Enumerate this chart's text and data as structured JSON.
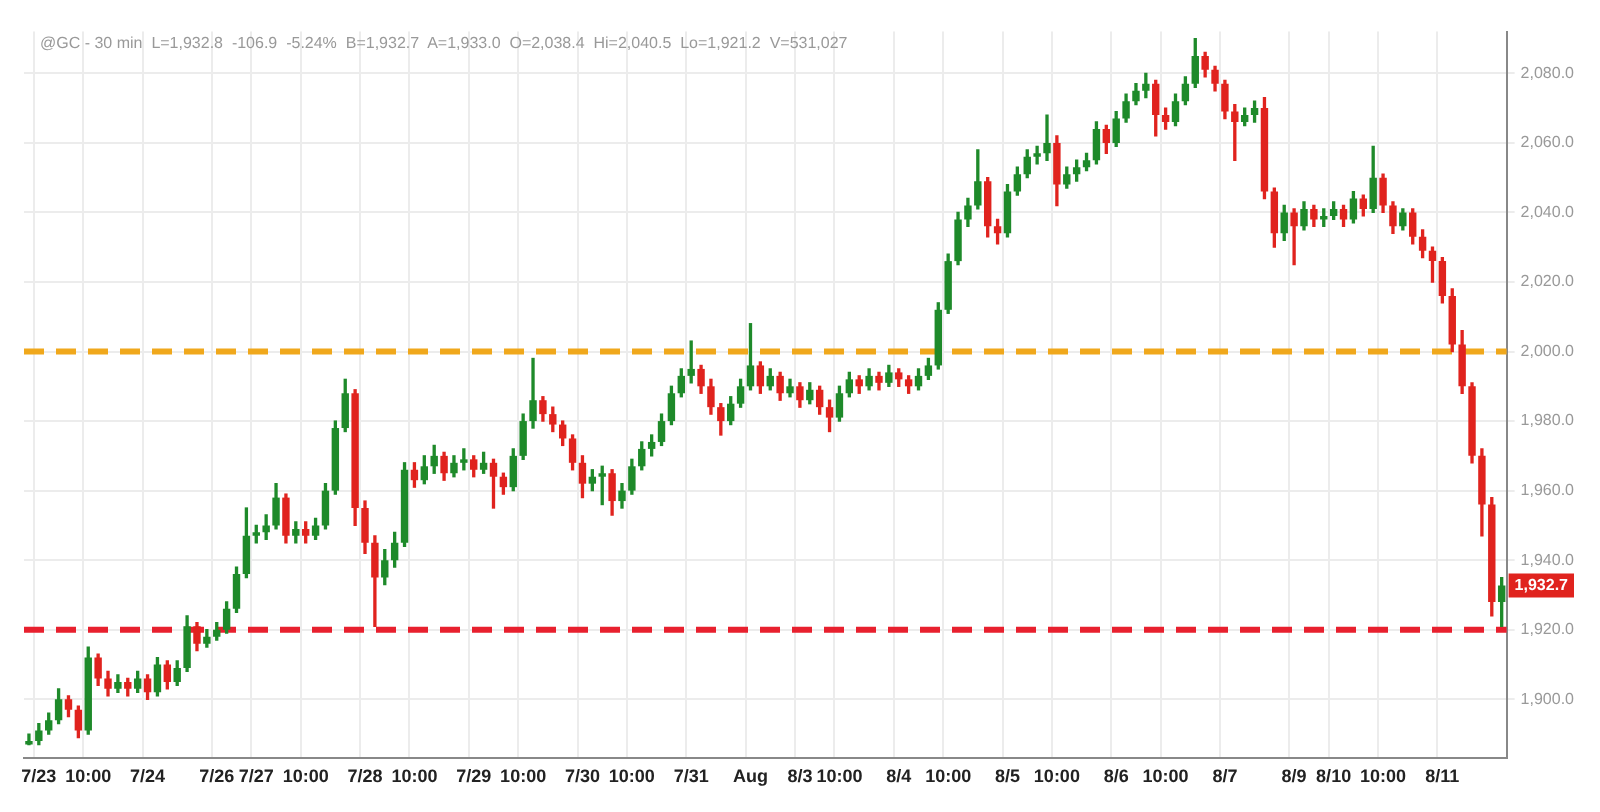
{
  "chart_data": {
    "type": "candlestick",
    "subtitle": "@GC - 30 min  L=1,932.8  -106.9  -5.24%  B=1,932.7  A=1,933.0  O=2,038.4  Hi=2,040.5  Lo=1,921.2  V=531,027",
    "categories": [
      null,
      "7/23",
      null,
      null,
      null,
      null,
      "10:00",
      null,
      null,
      null,
      null,
      null,
      "7/24",
      null,
      null,
      null,
      null,
      null,
      null,
      "7/26",
      null,
      null,
      null,
      "7/27",
      null,
      null,
      null,
      null,
      "10:00",
      null,
      null,
      null,
      null,
      null,
      "7/28",
      null,
      null,
      null,
      null,
      "10:00",
      null,
      null,
      null,
      null,
      null,
      "7/29",
      null,
      null,
      null,
      null,
      "10:00",
      null,
      null,
      null,
      null,
      null,
      "7/30",
      null,
      null,
      null,
      null,
      "10:00",
      null,
      null,
      null,
      null,
      null,
      "7/31",
      null,
      null,
      null,
      null,
      null,
      "Aug",
      null,
      null,
      null,
      null,
      "8/3",
      null,
      null,
      null,
      "10:00",
      null,
      null,
      null,
      null,
      null,
      "8/4",
      null,
      null,
      null,
      null,
      "10:00",
      null,
      null,
      null,
      null,
      null,
      "8/5",
      null,
      null,
      null,
      null,
      "10:00",
      null,
      null,
      null,
      null,
      null,
      "8/6",
      null,
      null,
      null,
      null,
      "10:00",
      null,
      null,
      null,
      null,
      null,
      "8/7",
      null,
      null,
      null,
      null,
      null,
      null,
      "8/9",
      null,
      null,
      null,
      "8/10",
      null,
      null,
      null,
      null,
      "10:00",
      null,
      null,
      null,
      null,
      null,
      "8/11",
      null,
      null,
      null,
      null,
      null,
      null
    ],
    "ohlc": [
      [
        1887,
        1890,
        1887,
        1888
      ],
      [
        1888,
        1893,
        1887,
        1891
      ],
      [
        1891,
        1896,
        1890,
        1894
      ],
      [
        1894,
        1903,
        1893,
        1900
      ],
      [
        1900,
        1901,
        1895,
        1897
      ],
      [
        1897,
        1898,
        1889,
        1891
      ],
      [
        1891,
        1915,
        1890,
        1912
      ],
      [
        1912,
        1913,
        1904,
        1906
      ],
      [
        1906,
        1908,
        1901,
        1903
      ],
      [
        1903,
        1907,
        1902,
        1905
      ],
      [
        1905,
        1906,
        1901,
        1903
      ],
      [
        1903,
        1908,
        1902,
        1906
      ],
      [
        1906,
        1907,
        1900,
        1902
      ],
      [
        1902,
        1912,
        1901,
        1910
      ],
      [
        1910,
        1911,
        1903,
        1905
      ],
      [
        1905,
        1911,
        1904,
        1909
      ],
      [
        1909,
        1924,
        1908,
        1921
      ],
      [
        1921,
        1922,
        1914,
        1916
      ],
      [
        1916,
        1920,
        1915,
        1918
      ],
      [
        1918,
        1922,
        1917,
        1920
      ],
      [
        1920,
        1928,
        1919,
        1926
      ],
      [
        1926,
        1938,
        1925,
        1936
      ],
      [
        1936,
        1955,
        1935,
        1947
      ],
      [
        1947,
        1950,
        1945,
        1948
      ],
      [
        1948,
        1953,
        1946,
        1950
      ],
      [
        1950,
        1962,
        1949,
        1958
      ],
      [
        1958,
        1959,
        1945,
        1947
      ],
      [
        1947,
        1951,
        1945,
        1949
      ],
      [
        1949,
        1951,
        1945,
        1947
      ],
      [
        1947,
        1952,
        1946,
        1950
      ],
      [
        1950,
        1962,
        1949,
        1960
      ],
      [
        1960,
        1980,
        1959,
        1978
      ],
      [
        1978,
        1992,
        1977,
        1988
      ],
      [
        1988,
        1989,
        1950,
        1955
      ],
      [
        1955,
        1957,
        1942,
        1945
      ],
      [
        1945,
        1947,
        1921,
        1935
      ],
      [
        1935,
        1943,
        1933,
        1940
      ],
      [
        1940,
        1948,
        1938,
        1945
      ],
      [
        1945,
        1968,
        1944,
        1966
      ],
      [
        1966,
        1968,
        1961,
        1963
      ],
      [
        1963,
        1970,
        1962,
        1967
      ],
      [
        1967,
        1973,
        1965,
        1970
      ],
      [
        1970,
        1971,
        1963,
        1965
      ],
      [
        1965,
        1970,
        1964,
        1968
      ],
      [
        1968,
        1972,
        1966,
        1969
      ],
      [
        1969,
        1970,
        1964,
        1966
      ],
      [
        1966,
        1971,
        1965,
        1968
      ],
      [
        1968,
        1969,
        1955,
        1964
      ],
      [
        1964,
        1965,
        1959,
        1961
      ],
      [
        1961,
        1972,
        1960,
        1970
      ],
      [
        1970,
        1982,
        1969,
        1980
      ],
      [
        1980,
        1998,
        1978,
        1986
      ],
      [
        1986,
        1987,
        1980,
        1982
      ],
      [
        1982,
        1984,
        1977,
        1979
      ],
      [
        1979,
        1980,
        1973,
        1975
      ],
      [
        1975,
        1976,
        1966,
        1968
      ],
      [
        1968,
        1970,
        1958,
        1962
      ],
      [
        1962,
        1966,
        1960,
        1964
      ],
      [
        1964,
        1967,
        1956,
        1965
      ],
      [
        1965,
        1966,
        1953,
        1957
      ],
      [
        1957,
        1962,
        1955,
        1960
      ],
      [
        1960,
        1969,
        1959,
        1967
      ],
      [
        1967,
        1974,
        1966,
        1972
      ],
      [
        1972,
        1976,
        1970,
        1974
      ],
      [
        1974,
        1982,
        1973,
        1980
      ],
      [
        1980,
        1990,
        1979,
        1988
      ],
      [
        1988,
        1995,
        1987,
        1993
      ],
      [
        1993,
        2003,
        1991,
        1995
      ],
      [
        1995,
        1996,
        1988,
        1990
      ],
      [
        1990,
        1992,
        1982,
        1984
      ],
      [
        1984,
        1985,
        1976,
        1980
      ],
      [
        1980,
        1987,
        1979,
        1985
      ],
      [
        1985,
        1992,
        1984,
        1990
      ],
      [
        1990,
        2008,
        1989,
        1996
      ],
      [
        1996,
        1997,
        1988,
        1990
      ],
      [
        1990,
        1995,
        1989,
        1993
      ],
      [
        1993,
        1994,
        1986,
        1988
      ],
      [
        1988,
        1992,
        1987,
        1990
      ],
      [
        1990,
        1991,
        1984,
        1986
      ],
      [
        1986,
        1991,
        1985,
        1989
      ],
      [
        1989,
        1990,
        1982,
        1984
      ],
      [
        1984,
        1986,
        1977,
        1981
      ],
      [
        1981,
        1990,
        1980,
        1988
      ],
      [
        1988,
        1994,
        1987,
        1992
      ],
      [
        1992,
        1993,
        1988,
        1990
      ],
      [
        1990,
        1995,
        1989,
        1993
      ],
      [
        1993,
        1994,
        1989,
        1991
      ],
      [
        1991,
        1996,
        1990,
        1994
      ],
      [
        1994,
        1995,
        1990,
        1992
      ],
      [
        1992,
        1993,
        1988,
        1990
      ],
      [
        1990,
        1995,
        1989,
        1993
      ],
      [
        1993,
        1998,
        1992,
        1996
      ],
      [
        1996,
        2014,
        1995,
        2012
      ],
      [
        2012,
        2028,
        2011,
        2026
      ],
      [
        2026,
        2040,
        2025,
        2038
      ],
      [
        2038,
        2044,
        2036,
        2042
      ],
      [
        2042,
        2058,
        2041,
        2049
      ],
      [
        2049,
        2050,
        2033,
        2036
      ],
      [
        2036,
        2038,
        2031,
        2034
      ],
      [
        2034,
        2048,
        2033,
        2046
      ],
      [
        2046,
        2053,
        2045,
        2051
      ],
      [
        2051,
        2058,
        2050,
        2056
      ],
      [
        2056,
        2059,
        2054,
        2057
      ],
      [
        2057,
        2068,
        2055,
        2060
      ],
      [
        2060,
        2062,
        2042,
        2048
      ],
      [
        2048,
        2053,
        2047,
        2051
      ],
      [
        2051,
        2055,
        2049,
        2053
      ],
      [
        2053,
        2057,
        2052,
        2055
      ],
      [
        2055,
        2066,
        2054,
        2064
      ],
      [
        2064,
        2065,
        2057,
        2060
      ],
      [
        2060,
        2069,
        2059,
        2067
      ],
      [
        2067,
        2074,
        2066,
        2072
      ],
      [
        2072,
        2077,
        2071,
        2075
      ],
      [
        2075,
        2080,
        2073,
        2077
      ],
      [
        2077,
        2078,
        2062,
        2068
      ],
      [
        2068,
        2070,
        2064,
        2066
      ],
      [
        2066,
        2074,
        2065,
        2072
      ],
      [
        2072,
        2079,
        2071,
        2077
      ],
      [
        2077,
        2090,
        2076,
        2085
      ],
      [
        2085,
        2086,
        2079,
        2081
      ],
      [
        2081,
        2082,
        2075,
        2077
      ],
      [
        2077,
        2078,
        2067,
        2069
      ],
      [
        2069,
        2071,
        2055,
        2066
      ],
      [
        2066,
        2070,
        2065,
        2068
      ],
      [
        2068,
        2072,
        2066,
        2070
      ],
      [
        2070,
        2073,
        2044,
        2046
      ],
      [
        2046,
        2047,
        2030,
        2034
      ],
      [
        2034,
        2042,
        2032,
        2040
      ],
      [
        2040,
        2041,
        2025,
        2036
      ],
      [
        2036,
        2043,
        2035,
        2041
      ],
      [
        2041,
        2042,
        2036,
        2038
      ],
      [
        2038,
        2041,
        2036,
        2039
      ],
      [
        2039,
        2043,
        2038,
        2041
      ],
      [
        2041,
        2042,
        2036,
        2038
      ],
      [
        2038,
        2046,
        2037,
        2044
      ],
      [
        2044,
        2045,
        2039,
        2041
      ],
      [
        2041,
        2059,
        2040,
        2050
      ],
      [
        2050,
        2051,
        2040,
        2042
      ],
      [
        2042,
        2043,
        2034,
        2036
      ],
      [
        2036,
        2041,
        2035,
        2040
      ],
      [
        2040,
        2041,
        2031,
        2033
      ],
      [
        2033,
        2035,
        2027,
        2029
      ],
      [
        2029,
        2030,
        2020,
        2026
      ],
      [
        2026,
        2027,
        2014,
        2016
      ],
      [
        2016,
        2018,
        2000,
        2002
      ],
      [
        2002,
        2006,
        1988,
        1990
      ],
      [
        1990,
        1991,
        1968,
        1970
      ],
      [
        1970,
        1972,
        1947,
        1956
      ],
      [
        1956,
        1958,
        1924,
        1928
      ],
      [
        1928,
        1935,
        1921,
        1932.7
      ]
    ],
    "ylim": [
      1883,
      2092
    ],
    "yticks": [
      {
        "value": 1900,
        "label": "1,900.0"
      },
      {
        "value": 1920,
        "label": "1,920.0"
      },
      {
        "value": 1940,
        "label": "1,940.0"
      },
      {
        "value": 1960,
        "label": "1,960.0"
      },
      {
        "value": 1980,
        "label": "1,980.0"
      },
      {
        "value": 2000,
        "label": "2,000.0"
      },
      {
        "value": 2020,
        "label": "2,020.0"
      },
      {
        "value": 2040,
        "label": "2,040.0"
      },
      {
        "value": 2060,
        "label": "2,060.0"
      },
      {
        "value": 2080,
        "label": "2,080.0"
      }
    ],
    "ref_lines": [
      {
        "axis": "y",
        "value": 2000,
        "color": "#f0a81c",
        "line_style": "dashed"
      },
      {
        "axis": "y",
        "value": 1920,
        "color": "#e8202e",
        "line_style": "dashed"
      }
    ],
    "annotations": [
      {
        "text": "1,932.7",
        "y": 1932.7
      }
    ],
    "grid": true,
    "legend": false
  }
}
